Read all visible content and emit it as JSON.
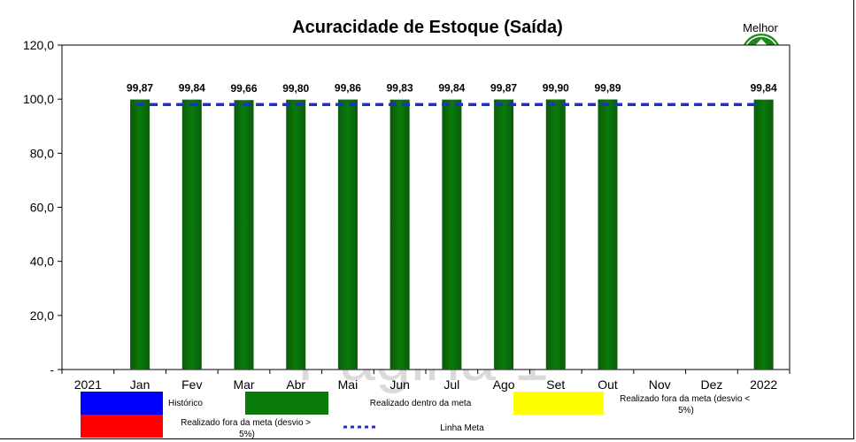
{
  "chart_data": {
    "type": "bar",
    "title": "Acuracidade de Estoque (Saída)",
    "categories": [
      "2021",
      "Jan",
      "Fev",
      "Mar",
      "Abr",
      "Mai",
      "Jun",
      "Jul",
      "Ago",
      "Set",
      "Out",
      "Nov",
      "Dez",
      "2022"
    ],
    "values": [
      null,
      99.87,
      99.84,
      99.66,
      99.8,
      99.86,
      99.83,
      99.84,
      99.87,
      99.9,
      99.89,
      null,
      null,
      99.84
    ],
    "value_labels": [
      "",
      "99,87",
      "99,84",
      "99,66",
      "99,80",
      "99,86",
      "99,83",
      "99,84",
      "99,87",
      "99,90",
      "99,89",
      "",
      "",
      "99,84"
    ],
    "target": 98,
    "target_from": "Jan",
    "target_to": "2022",
    "ylim": [
      0,
      120
    ],
    "yticks": [
      0,
      20,
      40,
      60,
      80,
      100,
      120
    ],
    "ytick_labels": [
      "-",
      "20,0",
      "40,0",
      "60,0",
      "80,0",
      "100,0",
      "120,0"
    ],
    "xlabel": "",
    "ylabel": "",
    "grid": false,
    "bar_color": "#0a7a0a",
    "target_color": "#1f2fd6",
    "legend": [
      {
        "key": "historico",
        "label": "Histórico",
        "color": "#0000ff"
      },
      {
        "key": "dentro",
        "label": "Realizado dentro da meta",
        "color": "#0a7a0a"
      },
      {
        "key": "fora_menor",
        "label": "Realizado fora da meta (desvio < 5%)",
        "color": "#ffff00"
      },
      {
        "key": "fora_maior",
        "label": "Realizado fora da meta (desvio > 5%)",
        "color": "#ff0000"
      },
      {
        "key": "meta",
        "label": "Linha Meta",
        "color": "#1f2fd6"
      }
    ],
    "better_indicator": "Melhor",
    "watermark": "Página 1"
  },
  "icons": {
    "better": "up-arrow-icon"
  }
}
